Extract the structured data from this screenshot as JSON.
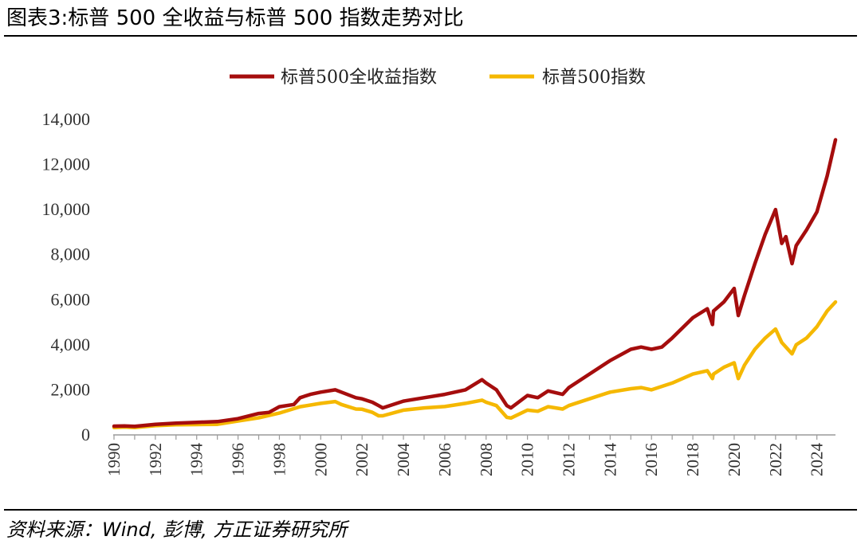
{
  "figure": {
    "title": "图表3:标普 500 全收益与标普 500 指数走势对比",
    "source": "资料来源：Wind, 彭博, 方正证券研究所"
  },
  "chart_data": {
    "type": "line",
    "title": "",
    "xlabel": "",
    "ylabel": "",
    "xlim": [
      1990,
      2024.9
    ],
    "ylim": [
      0,
      14000
    ],
    "y_ticks": [
      0,
      2000,
      4000,
      6000,
      8000,
      10000,
      12000,
      14000
    ],
    "y_tick_labels": [
      "0",
      "2,000",
      "4,000",
      "6,000",
      "8,000",
      "10,000",
      "12,000",
      "14,000"
    ],
    "x_ticks": [
      1990,
      1992,
      1994,
      1996,
      1998,
      2000,
      2002,
      2004,
      2006,
      2008,
      2010,
      2012,
      2014,
      2016,
      2018,
      2020,
      2022,
      2024
    ],
    "x_tick_labels": [
      "1990",
      "1992",
      "1994",
      "1996",
      "1998",
      "2000",
      "2002",
      "2004",
      "2006",
      "2008",
      "2010",
      "2012",
      "2014",
      "2016",
      "2018",
      "2020",
      "2022",
      "2024"
    ],
    "grid": false,
    "legend_position": "top-center",
    "series": [
      {
        "name": "标普500全收益指数",
        "color": "#a50d0d",
        "x": [
          1990,
          1990.5,
          1991,
          1992,
          1993,
          1994,
          1995,
          1996,
          1997,
          1997.5,
          1998,
          1998.7,
          1999,
          1999.5,
          2000,
          2000.7,
          2001,
          2001.7,
          2002,
          2002.5,
          2002.8,
          2003,
          2004,
          2005,
          2006,
          2007,
          2007.8,
          2008,
          2008.5,
          2009,
          2009.2,
          2010,
          2010.5,
          2011,
          2011.7,
          2012,
          2013,
          2014,
          2015,
          2015.5,
          2016,
          2016.5,
          2017,
          2018,
          2018.7,
          2018.95,
          2019,
          2019.5,
          2020,
          2020.2,
          2020.5,
          2021,
          2021.5,
          2022,
          2022.3,
          2022.5,
          2022.8,
          2023,
          2023.5,
          2024,
          2024.5,
          2024.9
        ],
        "values": [
          390,
          400,
          380,
          470,
          520,
          560,
          590,
          720,
          950,
          1000,
          1250,
          1350,
          1650,
          1800,
          1900,
          2000,
          1900,
          1650,
          1600,
          1450,
          1300,
          1200,
          1500,
          1650,
          1800,
          2000,
          2450,
          2300,
          2000,
          1300,
          1200,
          1750,
          1650,
          1950,
          1800,
          2100,
          2700,
          3300,
          3800,
          3900,
          3800,
          3900,
          4300,
          5200,
          5600,
          4900,
          5500,
          5900,
          6500,
          5300,
          6200,
          7600,
          8900,
          10000,
          8500,
          8800,
          7600,
          8400,
          9100,
          9900,
          11500,
          13100
        ]
      },
      {
        "name": "标普500指数",
        "color": "#f5b800",
        "x": [
          1990,
          1990.5,
          1991,
          1992,
          1993,
          1994,
          1995,
          1996,
          1997,
          1998,
          1999,
          2000,
          2000.7,
          2001,
          2001.7,
          2002,
          2002.5,
          2002.8,
          2003,
          2004,
          2005,
          2006,
          2007,
          2007.8,
          2008,
          2008.5,
          2009,
          2009.2,
          2010,
          2010.5,
          2011,
          2011.7,
          2012,
          2013,
          2014,
          2015,
          2015.5,
          2016,
          2017,
          2018,
          2018.7,
          2018.95,
          2019,
          2019.5,
          2020,
          2020.2,
          2020.5,
          2021,
          2021.5,
          2022,
          2022.3,
          2022.8,
          2023,
          2023.5,
          2024,
          2024.5,
          2024.9
        ],
        "values": [
          330,
          350,
          330,
          410,
          450,
          460,
          470,
          620,
          760,
          970,
          1250,
          1400,
          1480,
          1350,
          1150,
          1140,
          1000,
          850,
          850,
          1100,
          1200,
          1260,
          1400,
          1540,
          1450,
          1300,
          780,
          750,
          1100,
          1050,
          1250,
          1150,
          1300,
          1600,
          1900,
          2050,
          2100,
          2000,
          2300,
          2700,
          2850,
          2500,
          2700,
          3000,
          3200,
          2500,
          3100,
          3800,
          4300,
          4700,
          4100,
          3600,
          4000,
          4300,
          4800,
          5500,
          5900
        ]
      }
    ]
  }
}
